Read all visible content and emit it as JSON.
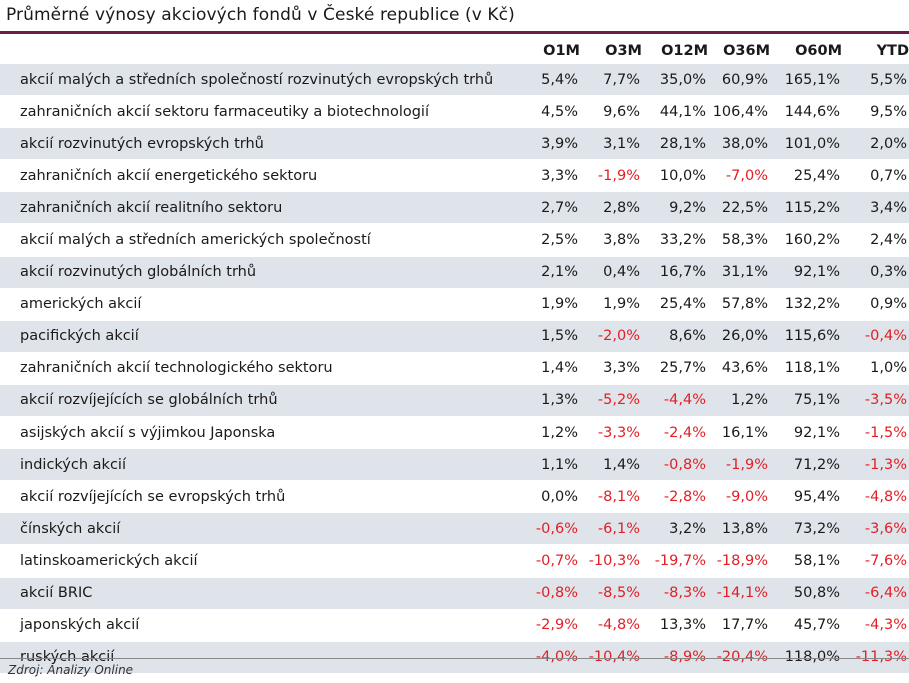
{
  "title": "Průměrné výnosy akciových fondů v České republice (v Kč)",
  "columns": [
    "O1M",
    "O3M",
    "O12M",
    "O36M",
    "O60M",
    "YTD"
  ],
  "rows": [
    {
      "name": "akcií malých a středních společností rozvinutých evropských trhů",
      "values": [
        "5,4%",
        "7,7%",
        "35,0%",
        "60,9%",
        "165,1%",
        "5,5%"
      ]
    },
    {
      "name": "zahraničních akcií sektoru farmaceutiky a biotechnologií",
      "values": [
        "4,5%",
        "9,6%",
        "44,1%",
        "106,4%",
        "144,6%",
        "9,5%"
      ]
    },
    {
      "name": "akcií rozvinutých evropských trhů",
      "values": [
        "3,9%",
        "3,1%",
        "28,1%",
        "38,0%",
        "101,0%",
        "2,0%"
      ]
    },
    {
      "name": "zahraničních akcií energetického sektoru",
      "values": [
        "3,3%",
        "-1,9%",
        "10,0%",
        "-7,0%",
        "25,4%",
        "0,7%"
      ]
    },
    {
      "name": "zahraničních akcií realitního sektoru",
      "values": [
        "2,7%",
        "2,8%",
        "9,2%",
        "22,5%",
        "115,2%",
        "3,4%"
      ]
    },
    {
      "name": "akcií malých a středních amerických společností",
      "values": [
        "2,5%",
        "3,8%",
        "33,2%",
        "58,3%",
        "160,2%",
        "2,4%"
      ]
    },
    {
      "name": "akcií rozvinutých globálních trhů",
      "values": [
        "2,1%",
        "0,4%",
        "16,7%",
        "31,1%",
        "92,1%",
        "0,3%"
      ]
    },
    {
      "name": "amerických akcií",
      "values": [
        "1,9%",
        "1,9%",
        "25,4%",
        "57,8%",
        "132,2%",
        "0,9%"
      ]
    },
    {
      "name": "pacifických akcií",
      "values": [
        "1,5%",
        "-2,0%",
        "8,6%",
        "26,0%",
        "115,6%",
        "-0,4%"
      ]
    },
    {
      "name": "zahraničních akcií technologického sektoru",
      "values": [
        "1,4%",
        "3,3%",
        "25,7%",
        "43,6%",
        "118,1%",
        "1,0%"
      ]
    },
    {
      "name": "akcií rozvíjejících se globálních trhů",
      "values": [
        "1,3%",
        "-5,2%",
        "-4,4%",
        "1,2%",
        "75,1%",
        "-3,5%"
      ]
    },
    {
      "name": "asijských akcií s výjimkou Japonska",
      "values": [
        "1,2%",
        "-3,3%",
        "-2,4%",
        "16,1%",
        "92,1%",
        "-1,5%"
      ]
    },
    {
      "name": "indických akcií",
      "values": [
        "1,1%",
        "1,4%",
        "-0,8%",
        "-1,9%",
        "71,2%",
        "-1,3%"
      ]
    },
    {
      "name": "akcií rozvíjejících se evropských trhů",
      "values": [
        "0,0%",
        "-8,1%",
        "-2,8%",
        "-9,0%",
        "95,4%",
        "-4,8%"
      ]
    },
    {
      "name": "čínských akcií",
      "values": [
        "-0,6%",
        "-6,1%",
        "3,2%",
        "13,8%",
        "73,2%",
        "-3,6%"
      ]
    },
    {
      "name": "latinskoamerických akcií",
      "values": [
        "-0,7%",
        "-10,3%",
        "-19,7%",
        "-18,9%",
        "58,1%",
        "-7,6%"
      ]
    },
    {
      "name": "akcií BRIC",
      "values": [
        "-0,8%",
        "-8,5%",
        "-8,3%",
        "-14,1%",
        "50,8%",
        "-6,4%"
      ]
    },
    {
      "name": "japonských akcií",
      "values": [
        "-2,9%",
        "-4,8%",
        "13,3%",
        "17,7%",
        "45,7%",
        "-4,3%"
      ]
    },
    {
      "name": "ruských akcií",
      "values": [
        "-4,0%",
        "-10,4%",
        "-8,9%",
        "-20,4%",
        "118,0%",
        "-11,3%"
      ]
    }
  ],
  "source": "Zdroj: Analizy Online",
  "colors": {
    "accent_rule": "#6b1d4a",
    "row_band": "#dfe3ea",
    "negative": "#e31e24"
  }
}
